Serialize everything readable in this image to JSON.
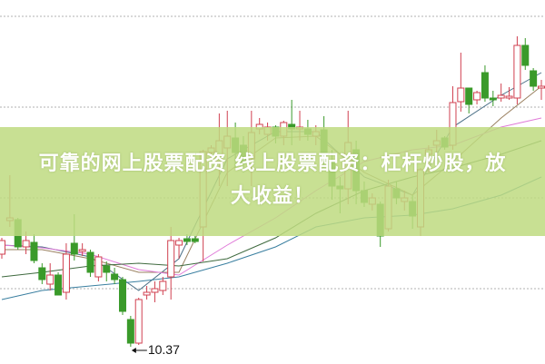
{
  "overlay": {
    "line1": "可靠的网上股票配资 线上股票配资：杠杆炒股，放",
    "line2": "大收益！"
  },
  "chart_data": {
    "type": "candlestick",
    "title": "",
    "xlabel": "",
    "ylabel": "",
    "ylim": [
      10.2,
      14.19
    ],
    "grid": true,
    "gridlines": [
      14.01,
      13.01,
      12.01,
      11.01
    ],
    "colors": {
      "up": "#d04050",
      "down": "#3a9a2a",
      "grid": "#b0b0b0",
      "banner": "#bedA80"
    },
    "low_marker": {
      "value": "10.37",
      "candle": 16
    },
    "candles": [
      [
        11.39,
        11.54,
        11.57,
        11.34
      ],
      [
        11.76,
        11.79,
        12.26,
        11.69
      ],
      [
        11.77,
        11.47,
        11.79,
        11.44
      ],
      [
        11.47,
        11.54,
        11.64,
        11.39
      ],
      [
        11.52,
        11.32,
        11.61,
        11.29
      ],
      [
        11.24,
        11.11,
        11.29,
        11.06
      ],
      [
        11.06,
        11.16,
        11.29,
        10.99
      ],
      [
        11.16,
        10.94,
        11.19,
        10.94
      ],
      [
        10.97,
        11.39,
        11.51,
        10.89
      ],
      [
        11.51,
        11.39,
        11.83,
        11.32
      ],
      [
        11.42,
        11.44,
        11.51,
        11.37
      ],
      [
        11.41,
        11.19,
        11.44,
        11.14
      ],
      [
        11.14,
        11.36,
        11.39,
        11.09
      ],
      [
        11.26,
        11.19,
        11.31,
        11.09
      ],
      [
        11.17,
        11.11,
        11.24,
        11.06
      ],
      [
        11.11,
        10.76,
        11.14,
        10.72
      ],
      [
        10.67,
        10.41,
        10.71,
        10.37
      ],
      [
        10.41,
        10.89,
        10.91,
        10.39
      ],
      [
        10.94,
        10.97,
        11.04,
        10.89
      ],
      [
        10.97,
        11.01,
        11.09,
        10.86
      ],
      [
        10.99,
        11.09,
        11.14,
        10.94
      ],
      [
        11.14,
        11.54,
        11.69,
        10.89
      ],
      [
        11.49,
        11.54,
        11.57,
        11.34
      ],
      [
        11.56,
        11.53,
        11.61,
        11.49
      ],
      [
        11.56,
        11.53,
        11.59,
        11.51
      ],
      [
        11.69,
        12.52,
        12.54,
        11.31
      ],
      [
        12.51,
        12.56,
        12.59,
        12.44
      ],
      [
        12.41,
        12.64,
        12.94,
        12.14
      ],
      [
        12.56,
        12.69,
        12.97,
        12.14
      ],
      [
        12.67,
        12.51,
        12.84,
        12.34
      ],
      [
        12.59,
        12.39,
        12.69,
        12.29
      ],
      [
        12.44,
        12.73,
        12.97,
        12.14
      ],
      [
        12.77,
        12.82,
        12.89,
        12.71
      ],
      [
        12.71,
        12.79,
        12.84,
        12.64
      ],
      [
        12.79,
        12.69,
        12.81,
        12.61
      ],
      [
        12.69,
        12.84,
        12.86,
        12.59
      ],
      [
        12.82,
        12.77,
        13.09,
        12.59
      ],
      [
        12.77,
        12.79,
        12.97,
        12.64
      ],
      [
        12.77,
        12.71,
        12.87,
        12.64
      ],
      [
        12.69,
        12.74,
        12.81,
        12.59
      ],
      [
        12.76,
        12.51,
        12.91,
        12.34
      ],
      [
        12.41,
        12.14,
        12.54,
        11.99
      ],
      [
        12.14,
        12.11,
        12.24,
        11.84
      ],
      [
        12.11,
        12.62,
        12.97,
        11.94
      ],
      [
        12.54,
        12.09,
        12.64,
        11.94
      ],
      [
        12.09,
        11.96,
        12.19,
        11.91
      ],
      [
        11.94,
        12.01,
        12.06,
        11.87
      ],
      [
        11.94,
        11.59,
        11.97,
        11.47
      ],
      [
        11.67,
        12.14,
        12.21,
        11.64
      ],
      [
        12.11,
        12.01,
        12.19,
        11.94
      ],
      [
        11.97,
        12.01,
        12.09,
        11.87
      ],
      [
        11.97,
        11.81,
        12.04,
        11.67
      ],
      [
        11.69,
        12.32,
        12.34,
        11.59
      ],
      [
        12.49,
        12.54,
        12.59,
        12.29
      ],
      [
        12.59,
        12.64,
        12.76,
        12.47
      ],
      [
        12.67,
        12.57,
        12.69,
        12.54
      ],
      [
        12.59,
        13.06,
        13.24,
        12.54
      ],
      [
        13.07,
        13.22,
        13.61,
        12.96
      ],
      [
        13.22,
        13.04,
        13.22,
        12.94
      ],
      [
        13.09,
        13.17,
        13.19,
        13.04
      ],
      [
        13.39,
        13.11,
        13.47,
        13.07
      ],
      [
        13.11,
        13.09,
        13.19,
        13.02
      ],
      [
        13.11,
        13.14,
        13.27,
        13.07
      ],
      [
        13.11,
        13.13,
        13.23,
        13.09
      ],
      [
        13.11,
        13.69,
        13.79,
        13.04
      ],
      [
        13.69,
        13.47,
        13.77,
        13.42
      ],
      [
        13.41,
        13.24,
        13.44,
        13.19
      ],
      [
        13.22,
        13.24,
        13.31,
        13.09
      ]
    ],
    "ma_x": [
      0,
      5,
      11,
      17,
      22,
      28,
      34,
      39,
      45,
      51,
      56,
      62,
      67
    ],
    "ma_lines": [
      {
        "color": "#4a6f86",
        "values": [
          11.49,
          11.47,
          11.36,
          10.99,
          11.34,
          12.44,
          12.74,
          12.74,
          12.24,
          12.04,
          12.79,
          13.14,
          13.39
        ]
      },
      {
        "color": "#9a8060",
        "values": [
          11.44,
          11.44,
          11.34,
          11.19,
          11.19,
          12.29,
          12.67,
          12.69,
          12.29,
          12.04,
          12.41,
          12.89,
          13.24
        ]
      },
      {
        "color": "#e07ad8",
        "values": [
          11.49,
          11.46,
          11.39,
          11.22,
          11.16,
          11.49,
          11.79,
          12.09,
          12.41,
          12.54,
          12.59,
          12.79,
          12.89
        ]
      },
      {
        "color": "#3f6a3f",
        "values": [
          11.14,
          11.19,
          11.26,
          11.29,
          11.26,
          11.34,
          11.57,
          11.84,
          12.09,
          12.24,
          12.34,
          12.49,
          12.64
        ]
      },
      {
        "color": "#3a7fa0",
        "values": [
          10.89,
          10.99,
          11.04,
          11.09,
          11.14,
          11.29,
          11.47,
          11.69,
          11.79,
          11.82,
          11.89,
          12.04,
          12.24
        ]
      }
    ]
  }
}
